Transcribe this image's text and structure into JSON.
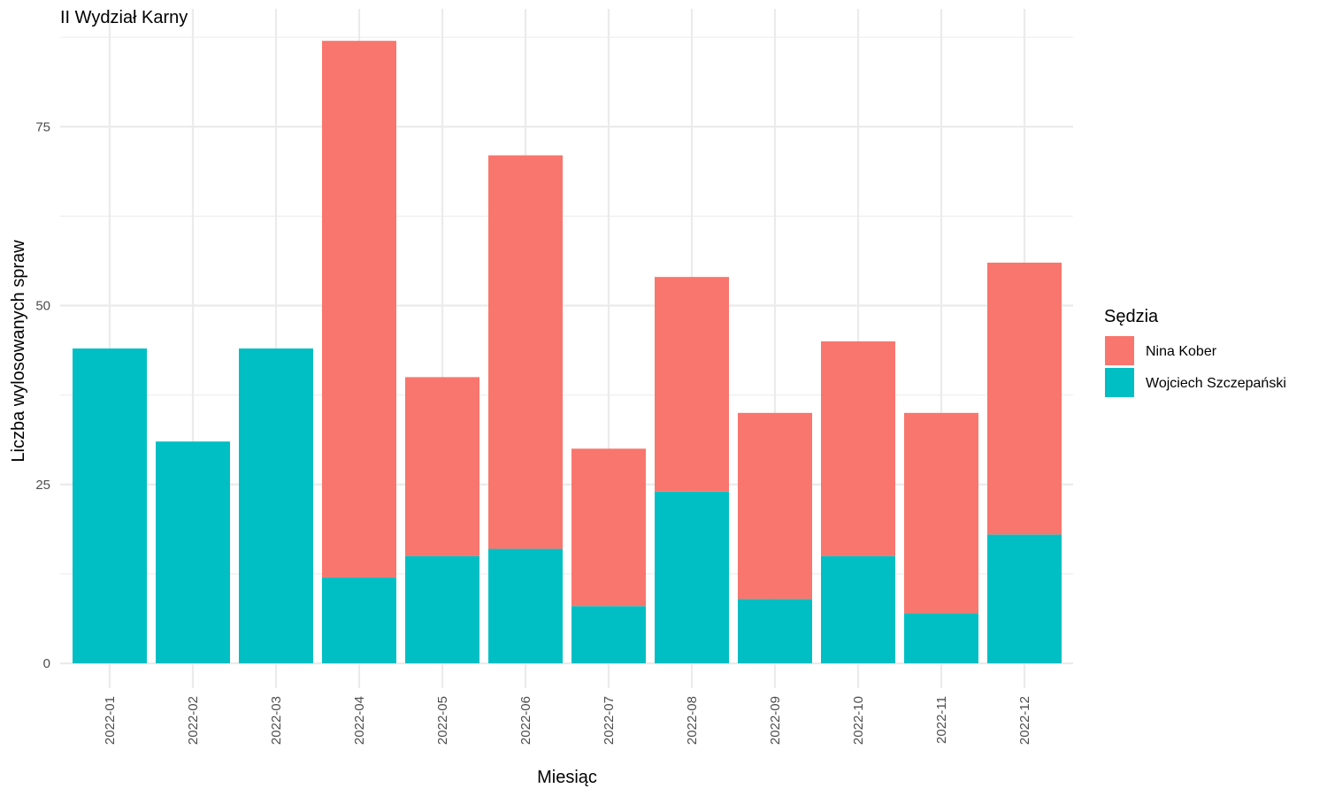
{
  "chart_data": {
    "type": "bar",
    "stacked": true,
    "title": "II Wydział Karny",
    "xlabel": "Miesiąc",
    "ylabel": "Liczba wylosowanych spraw",
    "categories": [
      "2022-01",
      "2022-02",
      "2022-03",
      "2022-04",
      "2022-05",
      "2022-06",
      "2022-07",
      "2022-08",
      "2022-09",
      "2022-10",
      "2022-11",
      "2022-12"
    ],
    "ylim": [
      0,
      91
    ],
    "yticks": [
      0,
      25,
      50,
      75
    ],
    "ytick_labels": [
      "0",
      "25",
      "50",
      "75"
    ],
    "grid": true,
    "legend": {
      "title": "Sędzia",
      "placement": "right"
    },
    "series": [
      {
        "name": "Nina Kober",
        "color": "#F8766D",
        "values": [
          0,
          0,
          0,
          75,
          25,
          55,
          22,
          30,
          26,
          30,
          28,
          38
        ]
      },
      {
        "name": "Wojciech Szczepański",
        "color": "#00BFC4",
        "values": [
          44,
          31,
          44,
          12,
          15,
          16,
          8,
          24,
          9,
          15,
          7,
          18
        ]
      }
    ]
  }
}
